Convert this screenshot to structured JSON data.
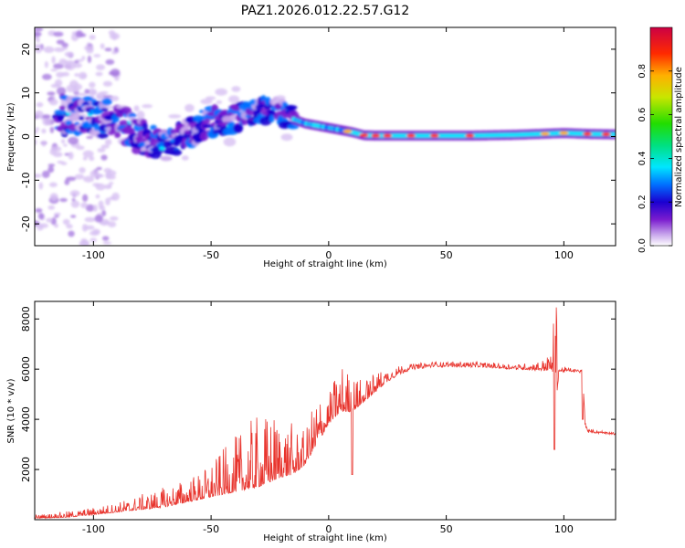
{
  "chart_data": [
    {
      "type": "heatmap",
      "title": "PAZ1.2026.012.22.57.G12",
      "xlabel": "Height of straight line (km)",
      "ylabel": "Frequency (Hz)",
      "xlim": [
        -125,
        122
      ],
      "ylim": [
        -25,
        25
      ],
      "x_ticks": [
        -100,
        -50,
        0,
        50,
        100
      ],
      "y_ticks": [
        -20,
        -10,
        0,
        10,
        20
      ],
      "colorbar": {
        "label": "Normalized spectral amplitude",
        "range": [
          0,
          1
        ],
        "ticks": [
          0.0,
          0.2,
          0.4,
          0.6,
          0.8
        ],
        "colors": [
          "#ffffff",
          "#c9a8ec",
          "#7a1ccf",
          "#1a00d0",
          "#0070ff",
          "#00e6ff",
          "#00e080",
          "#22dd00",
          "#c8e600",
          "#ffb000",
          "#ff2a00",
          "#cc0044"
        ]
      },
      "ridge": {
        "segments": [
          {
            "x": [
              -110,
              -100,
              -90,
              -80,
              -70,
              -60,
              -50,
              -40,
              -30,
              -20,
              -15,
              -10,
              -5,
              0,
              5,
              10,
              15,
              20,
              30,
              40,
              50,
              60,
              70,
              80,
              90,
              100,
              110,
              120
            ],
            "center_hz": [
              5,
              4.5,
              3.5,
              0,
              -2,
              1,
              3.5,
              4,
              6,
              5.5,
              4,
              3,
              2.5,
              2,
              1.5,
              1,
              0.3,
              0.2,
              0.2,
              0.2,
              0.2,
              0.2,
              0.3,
              0.4,
              0.6,
              0.8,
              0.6,
              0.5
            ]
          }
        ],
        "hot_spots_km": [
          8,
          15,
          20,
          25,
          35,
          45,
          60,
          92,
          100,
          110,
          118
        ]
      }
    },
    {
      "type": "line",
      "xlabel": "Height of straight line (km)",
      "ylabel": "SNR (10 * v/v)",
      "xlim": [
        -125,
        122
      ],
      "ylim": [
        0,
        8700
      ],
      "x_ticks": [
        -100,
        -50,
        0,
        50,
        100
      ],
      "y_ticks": [
        2000,
        4000,
        6000,
        8000
      ],
      "color": "#e8332c",
      "series": [
        {
          "envelope_x": [
            -125,
            -110,
            -100,
            -90,
            -80,
            -70,
            -60,
            -55,
            -50,
            -45,
            -40,
            -35,
            -30,
            -25,
            -20,
            -15,
            -10,
            -5,
            0,
            5,
            10,
            15,
            20,
            25,
            30,
            35,
            40,
            45,
            50,
            60,
            70,
            80,
            90,
            93,
            95,
            96,
            97,
            98,
            100,
            105,
            108,
            109,
            110,
            115,
            122
          ],
          "baseline": [
            50,
            100,
            200,
            300,
            400,
            500,
            700,
            800,
            900,
            1000,
            1100,
            1200,
            1300,
            1500,
            1700,
            1800,
            2200,
            3000,
            3800,
            4300,
            4300,
            4700,
            5100,
            5500,
            5800,
            6000,
            6050,
            6100,
            6100,
            6100,
            6050,
            6000,
            5950,
            5950,
            5900,
            5500,
            5000,
            5900,
            5900,
            5900,
            5850,
            3800,
            3500,
            3450,
            3400
          ],
          "peaks": [
            200,
            350,
            500,
            700,
            1000,
            1300,
            1700,
            1900,
            2300,
            2800,
            3300,
            3800,
            4200,
            4300,
            4300,
            3800,
            3500,
            5200,
            5000,
            6400,
            5800,
            5600,
            5900,
            6000,
            6150,
            6200,
            6250,
            6300,
            6300,
            6300,
            6250,
            6200,
            6300,
            6500,
            6700,
            8700,
            8700,
            6000,
            6100,
            6000,
            6000,
            4000,
            3600,
            3550,
            3500
          ],
          "dips": [
            [
              10,
              1800
            ],
            [
              96,
              2800
            ],
            [
              108,
              4000
            ]
          ]
        }
      ]
    }
  ]
}
